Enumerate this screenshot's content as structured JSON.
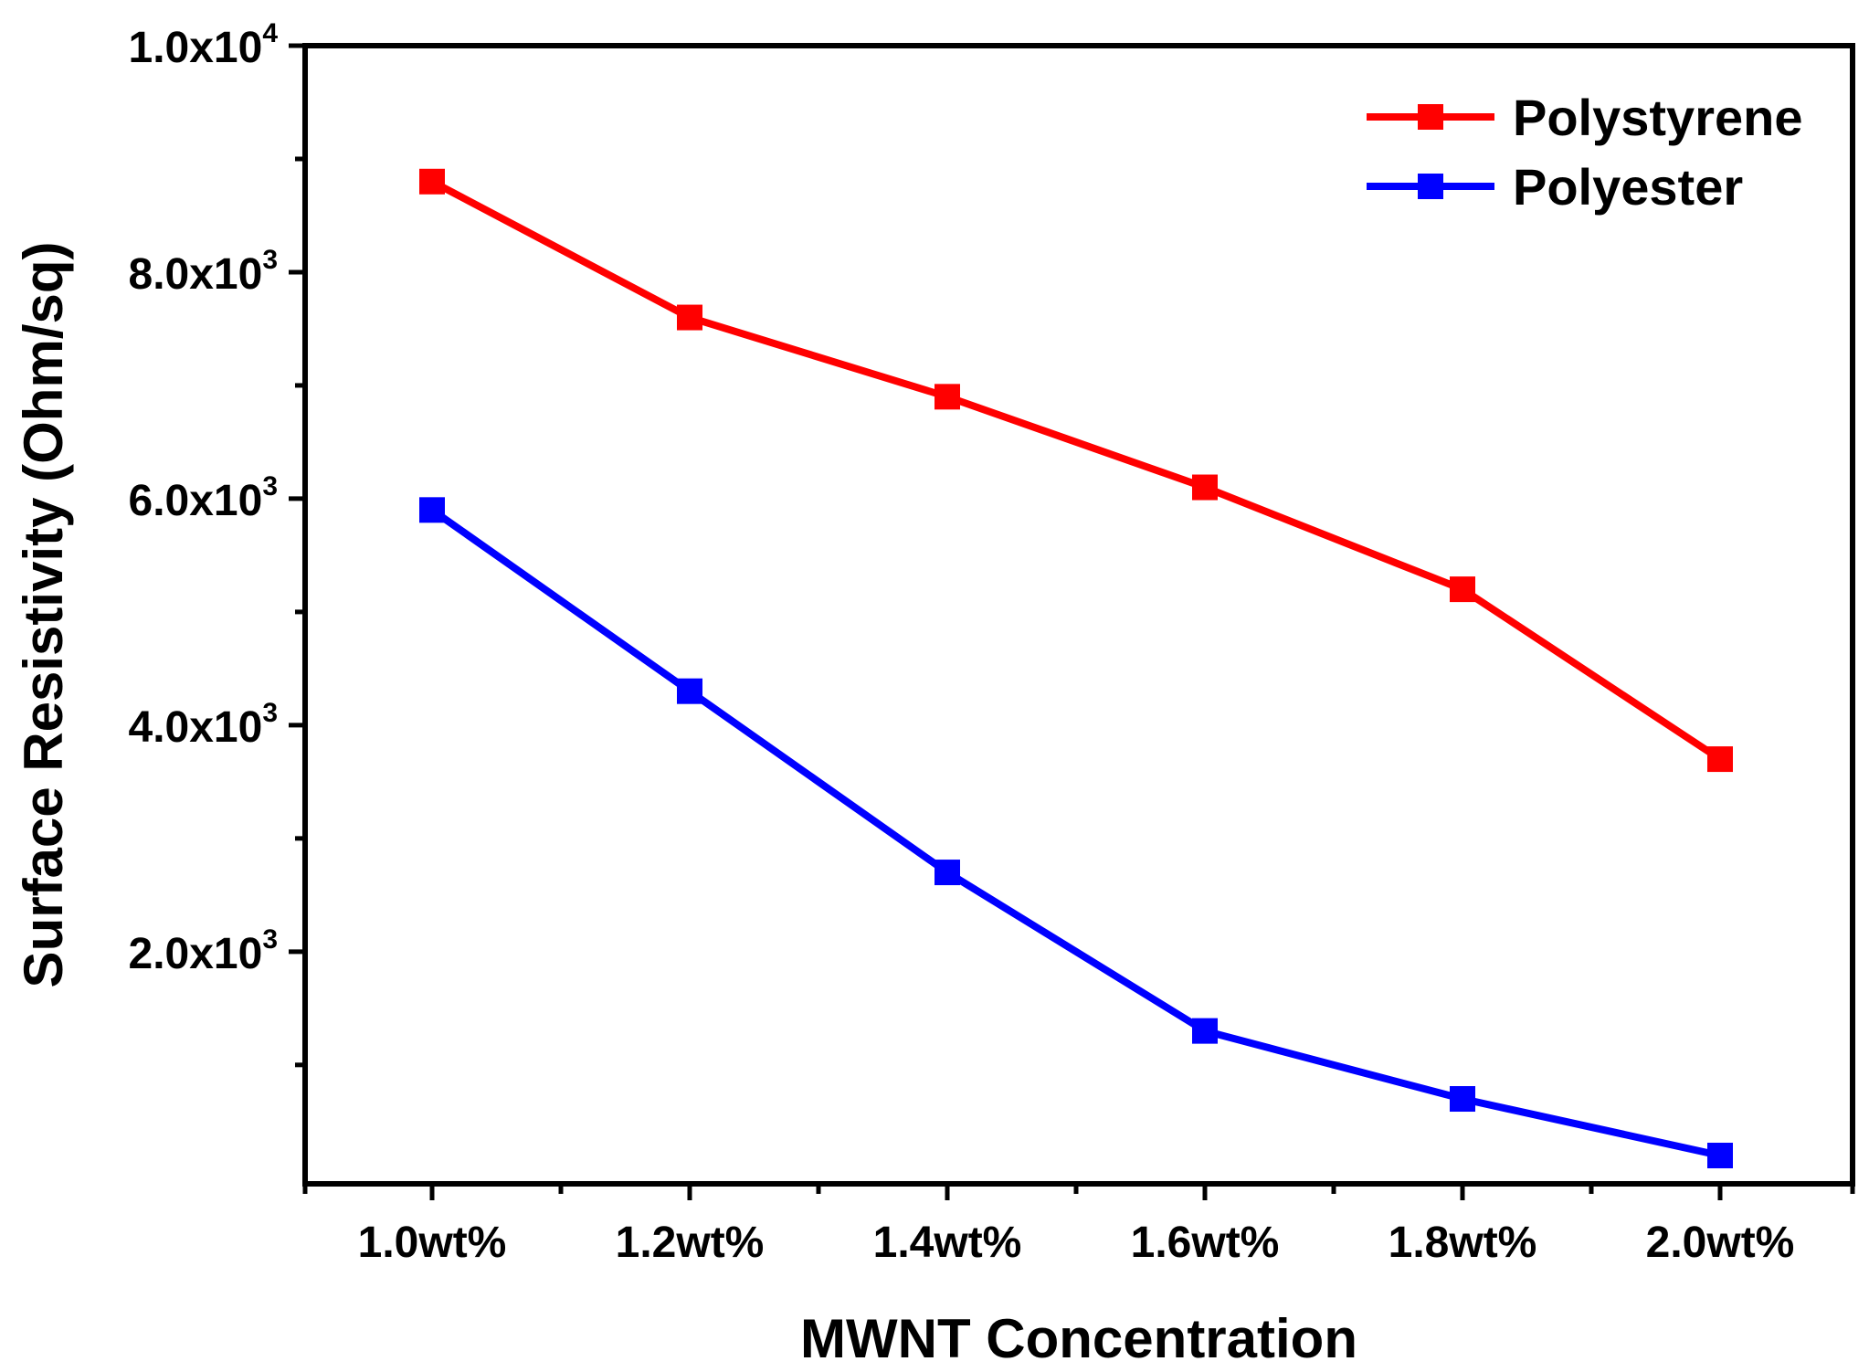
{
  "chart_data": {
    "type": "line",
    "categories": [
      "1.0wt%",
      "1.2wt%",
      "1.4wt%",
      "1.6wt%",
      "1.8wt%",
      "2.0wt%"
    ],
    "series": [
      {
        "name": "Polystyrene",
        "color": "#ff0000",
        "values": [
          8800,
          7600,
          6900,
          6100,
          5200,
          3700
        ]
      },
      {
        "name": "Polyester",
        "color": "#0000ff",
        "values": [
          5900,
          4300,
          2700,
          1300,
          700,
          200
        ]
      }
    ],
    "xlabel": "MWNT Concentration",
    "ylabel": "Surface Resistivity (Ohm/sq)",
    "ylim": [
      -50,
      10000
    ],
    "yticks": [
      {
        "value": 2000,
        "mantissa": "2.0x10",
        "exponent": "3"
      },
      {
        "value": 4000,
        "mantissa": "4.0x10",
        "exponent": "3"
      },
      {
        "value": 6000,
        "mantissa": "6.0x10",
        "exponent": "3"
      },
      {
        "value": 8000,
        "mantissa": "8.0x10",
        "exponent": "3"
      },
      {
        "value": 10000,
        "mantissa": "1.0x10",
        "exponent": "4"
      }
    ],
    "y_minor_ticks": [
      1000,
      3000,
      5000,
      7000,
      9000
    ],
    "legend_position": "top-right",
    "grid": false
  }
}
